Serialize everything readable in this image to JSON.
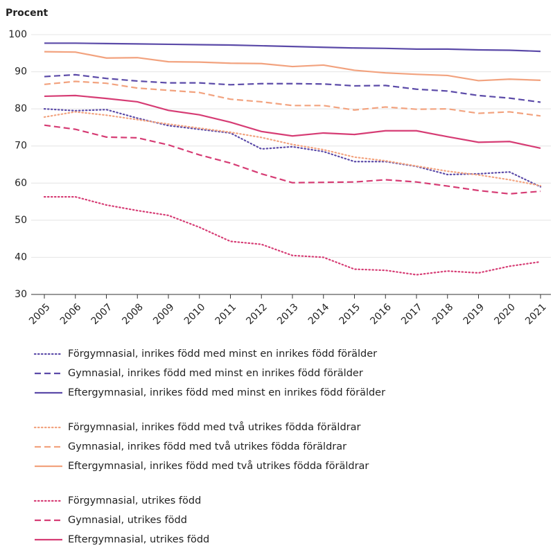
{
  "chart_data": {
    "type": "line",
    "y_label": "Procent",
    "categories": [
      "2005",
      "2006",
      "2007",
      "2008",
      "2009",
      "2010",
      "2011",
      "2012",
      "2013",
      "2014",
      "2015",
      "2016",
      "2017",
      "2018",
      "2019",
      "2020",
      "2021"
    ],
    "ylim": [
      30,
      100
    ],
    "yticks": [
      30,
      40,
      50,
      60,
      70,
      80,
      90,
      100
    ],
    "grid": true,
    "series": [
      {
        "name": "Förgymnasial, inrikes född med minst en inrikes född förälder",
        "color": "#5b4aa8",
        "style": "dotted",
        "values": [
          80,
          79.5,
          79.8,
          77.5,
          75.5,
          74.5,
          73.5,
          69.2,
          69.8,
          68.5,
          65.8,
          65.8,
          64.5,
          62.3,
          62.5,
          63,
          59
        ]
      },
      {
        "name": "Gymnasial, inrikes född med minst en inrikes född förälder",
        "color": "#5b4aa8",
        "style": "dashed",
        "values": [
          88.7,
          89.2,
          88.2,
          87.5,
          87,
          87,
          86.5,
          86.8,
          86.8,
          86.7,
          86.2,
          86.3,
          85.3,
          84.8,
          83.6,
          82.9,
          81.8
        ]
      },
      {
        "name": "Eftergymnasial, inrikes född med minst en inrikes född förälder",
        "color": "#5b4aa8",
        "style": "solid",
        "values": [
          97.7,
          97.7,
          97.6,
          97.5,
          97.4,
          97.3,
          97.2,
          97,
          96.8,
          96.6,
          96.4,
          96.3,
          96.1,
          96.1,
          95.9,
          95.8,
          95.5
        ]
      },
      {
        "name": "Förgymnasial, inrikes född med två utrikes födda föräldrar",
        "color": "#f2a27e",
        "style": "dotted",
        "values": [
          77.8,
          79.2,
          78.3,
          77.1,
          75.9,
          74.8,
          73.7,
          72.3,
          70.4,
          69.0,
          67.0,
          66.0,
          64.6,
          63.2,
          62.2,
          60.9,
          59.3
        ]
      },
      {
        "name": "Gymnasial, inrikes född med två utrikes födda föräldrar",
        "color": "#f2a27e",
        "style": "dashed",
        "values": [
          86.6,
          87.4,
          86.9,
          85.6,
          85,
          84.4,
          82.6,
          81.9,
          80.9,
          80.9,
          79.7,
          80.5,
          79.9,
          80,
          78.8,
          79.2,
          78.1
        ]
      },
      {
        "name": "Eftergymnasial, inrikes född med två utrikes födda föräldrar",
        "color": "#f2a27e",
        "style": "solid",
        "values": [
          95.4,
          95.3,
          93.7,
          93.8,
          92.7,
          92.6,
          92.3,
          92.2,
          91.4,
          91.8,
          90.4,
          89.7,
          89.3,
          89,
          87.6,
          88,
          87.7
        ]
      },
      {
        "name": "Förgymnasial, utrikes född",
        "color": "#d63c74",
        "style": "dotted",
        "values": [
          56.3,
          56.3,
          54.1,
          52.6,
          51.3,
          48.1,
          44.3,
          43.5,
          40.5,
          40,
          36.8,
          36.5,
          35.3,
          36.3,
          35.8,
          37.6,
          38.8
        ]
      },
      {
        "name": "Gymnasial, utrikes född",
        "color": "#d63c74",
        "style": "dashed",
        "values": [
          75.6,
          74.5,
          72.4,
          72.2,
          70.3,
          67.6,
          65.4,
          62.5,
          60.1,
          60.2,
          60.3,
          60.9,
          60.3,
          59.2,
          58,
          57.1,
          57.8
        ]
      },
      {
        "name": "Eftergymnasial, utrikes född",
        "color": "#d63c74",
        "style": "solid",
        "values": [
          83.4,
          83.6,
          82.8,
          81.9,
          79.6,
          78.4,
          76.4,
          73.9,
          72.7,
          73.5,
          73.1,
          74.1,
          74.1,
          72.5,
          71,
          71.2,
          69.4
        ]
      }
    ]
  }
}
